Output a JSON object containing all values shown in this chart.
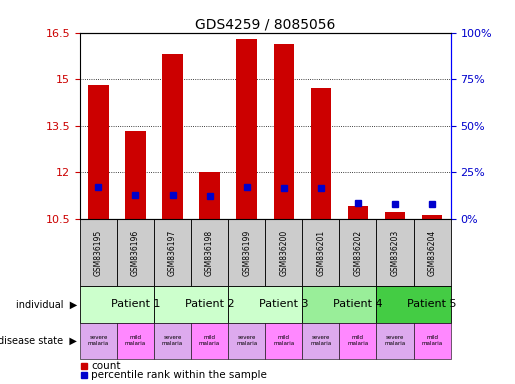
{
  "title": "GDS4259 / 8085056",
  "samples": [
    "GSM836195",
    "GSM836196",
    "GSM836197",
    "GSM836198",
    "GSM836199",
    "GSM836200",
    "GSM836201",
    "GSM836202",
    "GSM836203",
    "GSM836204"
  ],
  "count_values": [
    14.82,
    13.33,
    15.82,
    12.0,
    16.28,
    16.12,
    14.73,
    10.9,
    10.72,
    10.62
  ],
  "percentile_values": [
    17.0,
    13.0,
    13.0,
    12.5,
    17.0,
    16.5,
    16.5,
    8.5,
    8.0,
    8.0
  ],
  "ymin": 10.5,
  "ymax": 16.5,
  "yticks": [
    10.5,
    12.0,
    13.5,
    15.0,
    16.5
  ],
  "ytick_labels": [
    "10.5",
    "12",
    "13.5",
    "15",
    "16.5"
  ],
  "y2min": 0,
  "y2max": 100,
  "y2ticks": [
    0,
    25,
    50,
    75,
    100
  ],
  "y2tick_labels": [
    "0%",
    "25%",
    "50%",
    "75%",
    "100%"
  ],
  "bar_color": "#cc0000",
  "dot_color": "#0000cc",
  "bar_width": 0.55,
  "individuals": [
    {
      "label": "Patient 1",
      "start": 0,
      "end": 2,
      "color": "#ccffcc"
    },
    {
      "label": "Patient 2",
      "start": 2,
      "end": 4,
      "color": "#ccffcc"
    },
    {
      "label": "Patient 3",
      "start": 4,
      "end": 6,
      "color": "#ccffcc"
    },
    {
      "label": "Patient 4",
      "start": 6,
      "end": 8,
      "color": "#99ee99"
    },
    {
      "label": "Patient 5",
      "start": 8,
      "end": 10,
      "color": "#44cc44"
    }
  ],
  "disease_states": [
    {
      "label": "severe\nmalaria",
      "idx": 0,
      "color": "#ddaaee"
    },
    {
      "label": "mild\nmalaria",
      "idx": 1,
      "color": "#ff88ff"
    },
    {
      "label": "severe\nmalaria",
      "idx": 2,
      "color": "#ddaaee"
    },
    {
      "label": "mild\nmalaria",
      "idx": 3,
      "color": "#ff88ff"
    },
    {
      "label": "severe\nmalaria",
      "idx": 4,
      "color": "#ddaaee"
    },
    {
      "label": "mild\nmalaria",
      "idx": 5,
      "color": "#ff88ff"
    },
    {
      "label": "severe\nmalaria",
      "idx": 6,
      "color": "#ddaaee"
    },
    {
      "label": "mild\nmalaria",
      "idx": 7,
      "color": "#ff88ff"
    },
    {
      "label": "severe\nmalaria",
      "idx": 8,
      "color": "#ddaaee"
    },
    {
      "label": "mild\nmalaria",
      "idx": 9,
      "color": "#ff88ff"
    }
  ],
  "legend_count_color": "#cc0000",
  "legend_dot_color": "#0000cc",
  "sample_bg_color": "#cccccc",
  "bg_color": "#ffffff"
}
